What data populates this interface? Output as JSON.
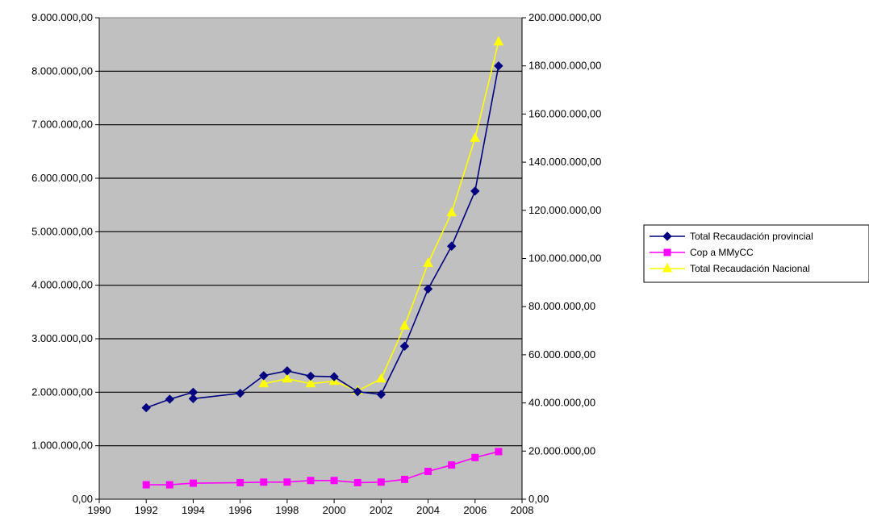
{
  "chart_data": {
    "type": "line",
    "title": "",
    "xlabel": "",
    "ylabel": "",
    "y2label": "",
    "xlim": [
      1990,
      2008
    ],
    "x_ticks": [
      "1990",
      "1992",
      "1994",
      "1996",
      "1998",
      "2000",
      "2002",
      "2004",
      "2006",
      "2008"
    ],
    "ylim": [
      0,
      9000000
    ],
    "y_ticks": [
      "0,00",
      "1.000.000,00",
      "2.000.000,00",
      "3.000.000,00",
      "4.000.000,00",
      "5.000.000,00",
      "6.000.000,00",
      "7.000.000,00",
      "8.000.000,00",
      "9.000.000,00"
    ],
    "y2lim": [
      0,
      200000000
    ],
    "y2_ticks": [
      "0,00",
      "20.000.000,00",
      "40.000.000,00",
      "60.000.000,00",
      "80.000.000,00",
      "100.000.000,00",
      "120.000.000,00",
      "140.000.000,00",
      "160.000.000,00",
      "180.000.000,00",
      "200.000.000,00"
    ],
    "grid": "horizontal",
    "plot_background": "#c0c0c0",
    "legend_position": "right",
    "series": [
      {
        "name": "Total Recaudación provincial",
        "color": "#000080",
        "marker": "diamond",
        "axis": "left",
        "x": [
          1992,
          1993,
          1994,
          1994,
          1996,
          1997,
          1998,
          1999,
          2000,
          2001,
          2002,
          2003,
          2004,
          2005,
          2006,
          2007
        ],
        "y": [
          1710000,
          1870000,
          2000000,
          1880000,
          1980000,
          2310000,
          2400000,
          2300000,
          2290000,
          2010000,
          1960000,
          2860000,
          3930000,
          4730000,
          5760000,
          8100000
        ]
      },
      {
        "name": "Cop a MMyCC",
        "color": "#ff00ff",
        "marker": "square",
        "axis": "left",
        "x": [
          1992,
          1993,
          1994,
          1996,
          1997,
          1998,
          1999,
          2000,
          2001,
          2002,
          2003,
          2004,
          2005,
          2006,
          2007
        ],
        "y": [
          270000,
          270000,
          300000,
          310000,
          320000,
          320000,
          350000,
          350000,
          310000,
          320000,
          370000,
          520000,
          640000,
          780000,
          890000
        ]
      },
      {
        "name": "Total Recaudación Nacional",
        "color": "#ffff00",
        "marker": "triangle",
        "axis": "right",
        "x": [
          1997,
          1998,
          1999,
          2000,
          2001,
          2002,
          2003,
          2004,
          2005,
          2006,
          2007
        ],
        "y": [
          48000000,
          50000000,
          48000000,
          49000000,
          45000000,
          50000000,
          72000000,
          98000000,
          119000000,
          150000000,
          190000000
        ]
      }
    ]
  }
}
